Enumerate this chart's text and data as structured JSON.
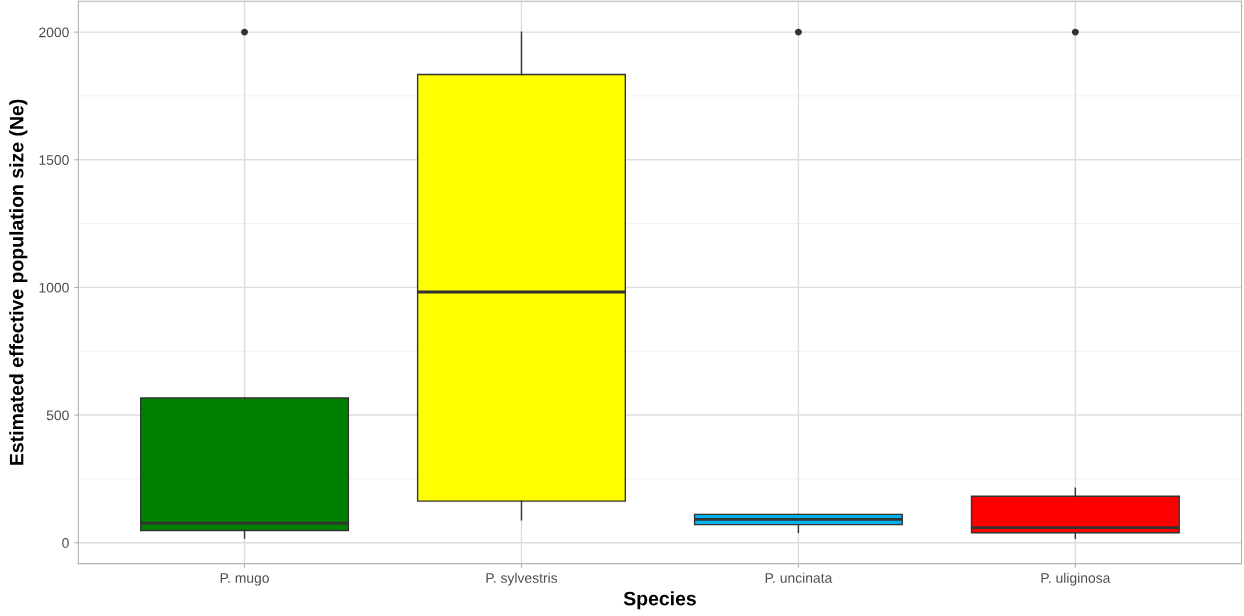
{
  "chart_data": {
    "type": "box",
    "xlabel": "Species",
    "ylabel": "Estimated effective population size (Ne)",
    "categories": [
      "P. mugo",
      "P. sylvestris",
      "P. uncinata",
      "P. uliginosa"
    ],
    "colors": [
      "#008000",
      "#ffff00",
      "#00b2ee",
      "#ff0000"
    ],
    "boxes": [
      {
        "low": 18,
        "q1": 48,
        "median": 77,
        "q3": 567,
        "high": 567,
        "outliers": [
          2000
        ]
      },
      {
        "low": 90,
        "q1": 163,
        "median": 982,
        "q3": 1834,
        "high": 2000
      },
      {
        "low": 41,
        "q1": 71,
        "median": 91,
        "q3": 111,
        "high": 111,
        "outliers": [
          2000
        ]
      },
      {
        "low": 17,
        "q1": 39,
        "median": 59,
        "q3": 182,
        "high": 214,
        "outliers": [
          2000
        ]
      }
    ],
    "ylim": [
      -82,
      2121
    ],
    "yticks": [
      0,
      500,
      1000,
      1500,
      2000
    ],
    "grid": true
  }
}
